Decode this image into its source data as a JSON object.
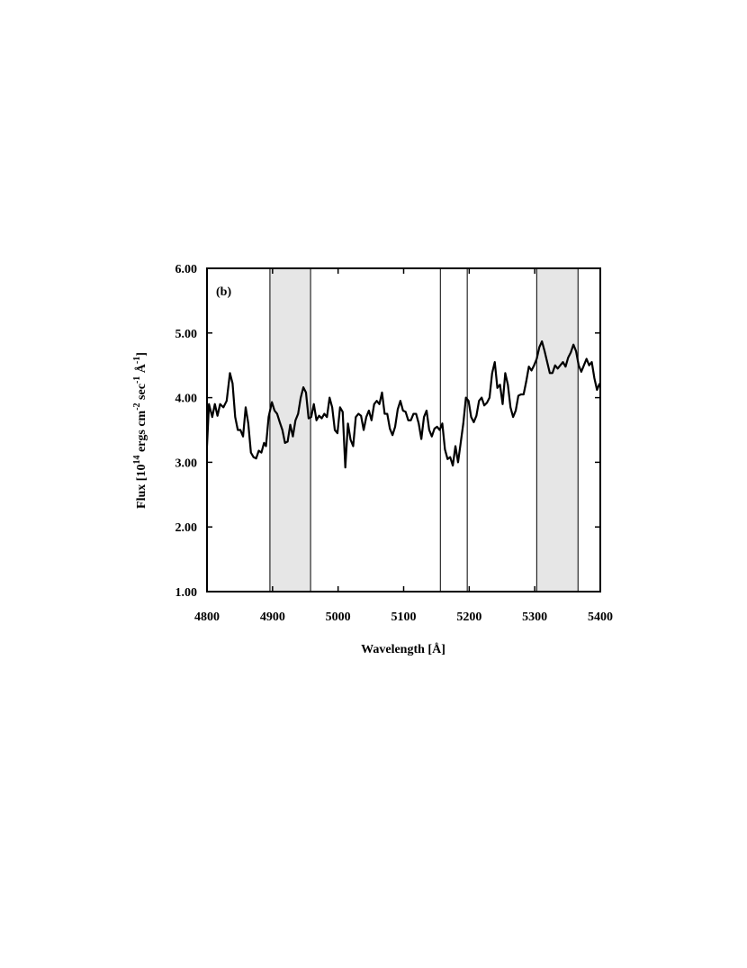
{
  "chart_data": {
    "type": "line",
    "title": "(b)",
    "xlabel": "Wavelength [Å]",
    "ylabel": [
      "Flux [10",
      "14",
      " ergs cm",
      "-2",
      " sec",
      "-1",
      " Å",
      "-1",
      "]"
    ],
    "xlim": [
      4800,
      5400
    ],
    "xticks": [
      4800,
      4900,
      5000,
      5100,
      5200,
      5300,
      5400
    ],
    "ylim": [
      1,
      6
    ],
    "yticks": [
      {
        "value": 1,
        "label": "1.00"
      },
      {
        "value": 2,
        "label": "2.00"
      },
      {
        "value": 3,
        "label": "3.00"
      },
      {
        "value": 4,
        "label": "4.00"
      },
      {
        "value": 5,
        "label": "5.00"
      },
      {
        "value": 6,
        "label": "6.00"
      }
    ],
    "shaded_regions": [
      [
        4896,
        4958
      ],
      [
        5303,
        5366
      ]
    ],
    "vertical_lines": [
      5156,
      5197
    ],
    "region_color": "#e6e6e6",
    "series": [
      {
        "color": "#000000",
        "x": [
          4800,
          4803,
          4808,
          4812,
          4816,
          4820,
          4825,
          4830,
          4835,
          4839,
          4843,
          4847,
          4851,
          4855,
          4859,
          4863,
          4867,
          4871,
          4875,
          4879,
          4883,
          4887,
          4890,
          4894,
          4899,
          4903,
          4907,
          4911,
          4915,
          4919,
          4923,
          4927,
          4931,
          4935,
          4939,
          4943,
          4947,
          4951,
          4955,
          4959,
          4963,
          4967,
          4971,
          4975,
          4979,
          4983,
          4987,
          4991,
          4995,
          4999,
          5003,
          5007,
          5011,
          5015,
          5019,
          5023,
          5027,
          5031,
          5035,
          5039,
          5043,
          5047,
          5051,
          5055,
          5059,
          5063,
          5067,
          5071,
          5075,
          5079,
          5083,
          5087,
          5091,
          5095,
          5099,
          5103,
          5107,
          5111,
          5115,
          5119,
          5123,
          5127,
          5131,
          5135,
          5139,
          5143,
          5147,
          5151,
          5155,
          5159,
          5163,
          5167,
          5171,
          5175,
          5179,
          5183,
          5187,
          5191,
          5195,
          5199,
          5203,
          5207,
          5211,
          5215,
          5219,
          5223,
          5227,
          5231,
          5235,
          5239,
          5243,
          5247,
          5251,
          5255,
          5259,
          5263,
          5267,
          5271,
          5275,
          5279,
          5283,
          5287,
          5291,
          5295,
          5299,
          5303,
          5307,
          5311,
          5315,
          5319,
          5323,
          5327,
          5331,
          5335,
          5339,
          5343,
          5347,
          5351,
          5355,
          5359,
          5363,
          5367,
          5371,
          5375,
          5379,
          5383,
          5387,
          5391,
          5395,
          5399
        ],
        "values": [
          3.25,
          3.9,
          3.7,
          3.9,
          3.72,
          3.9,
          3.85,
          3.95,
          4.38,
          4.22,
          3.7,
          3.5,
          3.5,
          3.4,
          3.85,
          3.6,
          3.15,
          3.08,
          3.06,
          3.18,
          3.15,
          3.3,
          3.25,
          3.7,
          3.93,
          3.8,
          3.75,
          3.62,
          3.5,
          3.3,
          3.32,
          3.58,
          3.4,
          3.65,
          3.75,
          4.0,
          4.16,
          4.08,
          3.68,
          3.7,
          3.9,
          3.65,
          3.72,
          3.68,
          3.75,
          3.7,
          4.0,
          3.85,
          3.5,
          3.45,
          3.85,
          3.78,
          2.92,
          3.6,
          3.35,
          3.25,
          3.7,
          3.75,
          3.72,
          3.5,
          3.7,
          3.8,
          3.65,
          3.9,
          3.95,
          3.9,
          4.08,
          3.75,
          3.75,
          3.52,
          3.42,
          3.55,
          3.82,
          3.95,
          3.8,
          3.78,
          3.65,
          3.65,
          3.75,
          3.75,
          3.6,
          3.36,
          3.7,
          3.8,
          3.5,
          3.4,
          3.52,
          3.55,
          3.5,
          3.6,
          3.2,
          3.05,
          3.08,
          2.95,
          3.25,
          3.0,
          3.3,
          3.6,
          4.0,
          3.95,
          3.7,
          3.62,
          3.72,
          3.95,
          4.0,
          3.88,
          3.92,
          4.0,
          4.38,
          4.55,
          4.15,
          4.2,
          3.9,
          4.38,
          4.2,
          3.85,
          3.7,
          3.8,
          4.03,
          4.05,
          4.05,
          4.25,
          4.48,
          4.42,
          4.5,
          4.6,
          4.78,
          4.87,
          4.72,
          4.55,
          4.38,
          4.38,
          4.5,
          4.45,
          4.5,
          4.55,
          4.48,
          4.62,
          4.7,
          4.82,
          4.72,
          4.5,
          4.4,
          4.5,
          4.6,
          4.5,
          4.55,
          4.3,
          4.12,
          4.22
        ]
      }
    ]
  }
}
